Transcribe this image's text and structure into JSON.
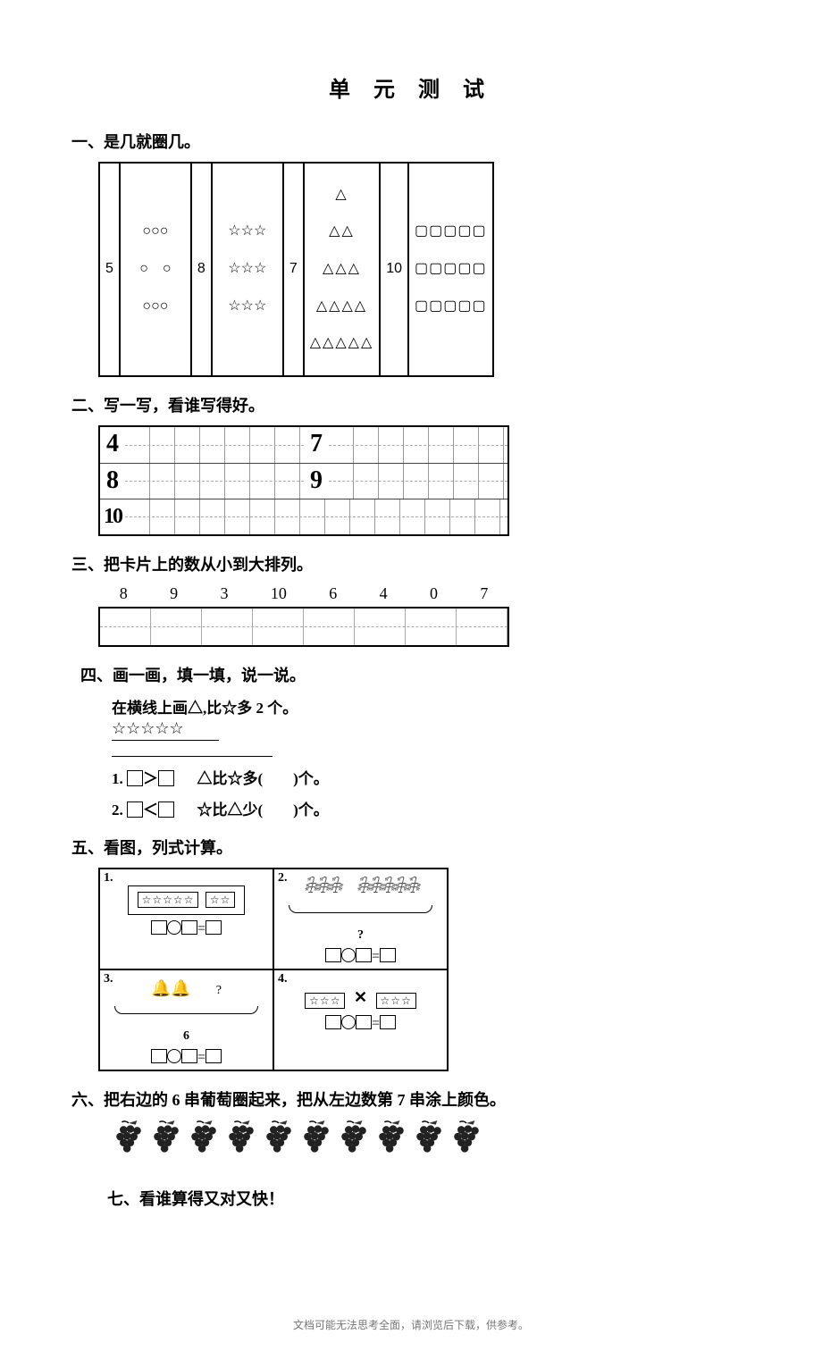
{
  "title": "单 元 测 试",
  "sections": {
    "s1": {
      "head": "一、是几就圈几。",
      "cells": [
        {
          "n": "5",
          "rows": [
            "○○○",
            "○　○",
            "○○○"
          ]
        },
        {
          "n": "8",
          "rows": [
            "☆☆☆",
            "☆☆☆",
            "☆☆☆"
          ]
        },
        {
          "n": "7",
          "rows": [
            "△",
            "△△",
            "△△△",
            "△△△△",
            "△△△△△"
          ]
        },
        {
          "n": "10",
          "rows": [
            "▢▢▢▢▢",
            "▢▢▢▢▢",
            "▢▢▢▢▢"
          ]
        }
      ]
    },
    "s2": {
      "head": "二、写一写，看谁写得好。",
      "rows": [
        [
          "4",
          "7"
        ],
        [
          "8",
          "9"
        ],
        [
          "10",
          ""
        ]
      ]
    },
    "s3": {
      "head": "三、把卡片上的数从小到大排列。",
      "nums": [
        "8",
        "9",
        "3",
        "10",
        "6",
        "4",
        "0",
        "7"
      ]
    },
    "s4": {
      "head": "四、画一画，填一填，说一说。",
      "sub": "在横线上画△,比☆多 2 个。",
      "stars": "☆☆☆☆☆",
      "r1_label": "1.",
      "r1_mid": "△比☆多(　　)个。",
      "r2_label": "2.",
      "r2_mid": "☆比△少(　　)个。"
    },
    "s5": {
      "head": "五、看图，列式计算。",
      "cells": {
        "c1": {
          "label": "1.",
          "stamp_a": "☆☆☆☆☆",
          "stamp_b": "☆☆"
        },
        "c2": {
          "label": "2.",
          "leaves_a": "𓇗𓇗𓇗",
          "leaves_b": "𓇗𓇗𓇗𓇗𓇗",
          "q": "?"
        },
        "c3": {
          "label": "3.",
          "bells": "🔔🔔",
          "q": "?",
          "total": "6"
        },
        "c4": {
          "label": "4.",
          "stamp": "☆☆☆"
        }
      }
    },
    "s6": {
      "head": "六、把右边的 6 串葡萄圈起来，把从左边数第 7 串涂上颜色。",
      "count": 10
    },
    "s7": {
      "head": "七、看谁算得又对又快！"
    }
  },
  "footer": "文档可能无法思考全面，请浏览后下载，供参考。",
  "colors": {
    "ink": "#000000",
    "bg": "#ffffff",
    "grid": "#999999"
  }
}
